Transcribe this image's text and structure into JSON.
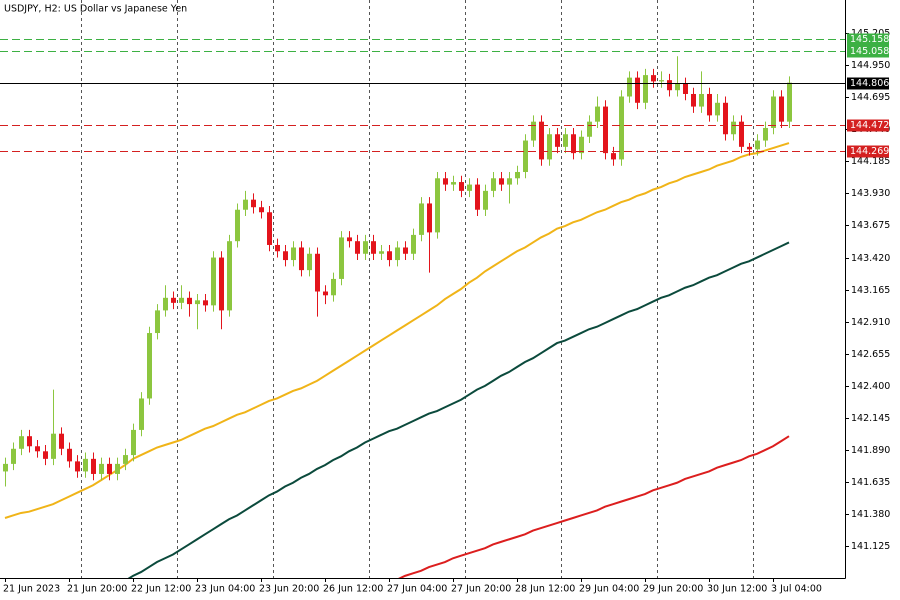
{
  "chart_data": {
    "type": "candlestick",
    "title": "USDJPY, H2:  US Dollar vs Japanese Yen",
    "categories": [
      "21 Jun 2023",
      null,
      null,
      null,
      null,
      null,
      null,
      null,
      "21 Jun 20:00",
      null,
      null,
      null,
      null,
      null,
      null,
      null,
      "22 Jun 12:00",
      null,
      null,
      null,
      null,
      null,
      null,
      null,
      "23 Jun 04:00",
      null,
      null,
      null,
      null,
      null,
      null,
      null,
      "23 Jun 20:00",
      null,
      null,
      null,
      null,
      null,
      null,
      null,
      "26 Jun 12:00",
      null,
      null,
      null,
      null,
      null,
      null,
      null,
      "27 Jun 04:00",
      null,
      null,
      null,
      null,
      null,
      null,
      null,
      "27 Jun 20:00",
      null,
      null,
      null,
      null,
      null,
      null,
      null,
      "28 Jun 12:00",
      null,
      null,
      null,
      null,
      null,
      null,
      null,
      "29 Jun 04:00",
      null,
      null,
      null,
      null,
      null,
      null,
      null,
      "29 Jun 20:00",
      null,
      null,
      null,
      null,
      null,
      null,
      null,
      "30 Jun 12:00",
      null,
      null,
      null,
      null,
      null,
      null,
      null,
      "3 Jul 04:00",
      null,
      null
    ],
    "open": [
      141.72,
      141.78,
      141.9,
      142.0,
      141.92,
      141.88,
      141.82,
      142.02,
      141.9,
      141.8,
      141.72,
      141.82,
      141.7,
      141.78,
      141.7,
      141.78,
      141.85,
      142.05,
      142.3,
      142.82,
      143.0,
      143.1,
      143.06,
      143.1,
      143.05,
      143.08,
      143.04,
      143.42,
      143.0,
      143.55,
      143.8,
      143.88,
      143.82,
      143.78,
      143.52,
      143.47,
      143.4,
      143.5,
      143.32,
      143.45,
      143.15,
      143.12,
      143.25,
      143.58,
      143.55,
      143.45,
      143.55,
      143.45,
      143.47,
      143.4,
      143.5,
      143.45,
      143.6,
      143.85,
      143.62,
      144.05,
      144.0,
      144.02,
      143.95,
      144.0,
      143.8,
      143.95,
      144.05,
      144.0,
      144.05,
      144.1,
      144.35,
      144.5,
      144.2,
      144.4,
      144.3,
      144.4,
      144.25,
      144.38,
      144.5,
      144.62,
      144.25,
      144.2,
      144.7,
      144.85,
      144.65,
      144.87,
      144.82,
      144.83,
      144.75,
      144.8,
      144.72,
      144.62,
      144.72,
      144.55,
      144.65,
      144.4,
      144.5,
      144.3,
      144.28,
      144.35,
      144.45,
      144.7,
      144.5
    ],
    "high": [
      141.83,
      141.95,
      142.05,
      142.05,
      141.97,
      141.93,
      142.37,
      142.07,
      141.95,
      141.85,
      141.87,
      141.87,
      141.83,
      141.83,
      141.83,
      141.9,
      142.1,
      142.35,
      142.87,
      143.05,
      143.2,
      143.15,
      143.2,
      143.15,
      143.13,
      143.13,
      143.47,
      143.47,
      143.6,
      143.85,
      143.95,
      143.93,
      143.87,
      143.83,
      143.57,
      143.52,
      143.55,
      143.55,
      143.5,
      143.5,
      143.2,
      143.3,
      143.63,
      143.63,
      143.6,
      143.6,
      143.6,
      143.52,
      143.52,
      143.55,
      143.55,
      143.65,
      143.9,
      143.9,
      144.1,
      144.1,
      144.07,
      144.07,
      144.05,
      144.05,
      144.0,
      144.1,
      144.1,
      144.1,
      144.15,
      144.4,
      144.55,
      144.55,
      144.45,
      144.45,
      144.45,
      144.45,
      144.43,
      144.55,
      144.7,
      144.67,
      144.3,
      144.75,
      144.9,
      144.9,
      144.92,
      144.92,
      144.9,
      144.88,
      145.02,
      144.85,
      144.77,
      144.9,
      144.77,
      144.72,
      144.7,
      144.55,
      144.55,
      144.33,
      144.4,
      144.5,
      144.75,
      144.75,
      144.86
    ],
    "low": [
      141.6,
      141.73,
      141.85,
      141.87,
      141.83,
      141.77,
      141.77,
      141.85,
      141.75,
      141.67,
      141.67,
      141.65,
      141.65,
      141.65,
      141.65,
      141.73,
      141.8,
      142.0,
      142.25,
      142.77,
      142.95,
      143.01,
      143.01,
      142.95,
      142.85,
      142.99,
      142.99,
      142.85,
      142.95,
      143.5,
      143.75,
      143.77,
      143.73,
      143.47,
      143.42,
      143.35,
      143.35,
      143.27,
      143.27,
      142.95,
      143.05,
      143.07,
      143.2,
      143.5,
      143.4,
      143.4,
      143.4,
      143.4,
      143.35,
      143.35,
      143.4,
      143.4,
      143.55,
      143.3,
      143.57,
      143.95,
      143.95,
      143.9,
      143.9,
      143.75,
      143.75,
      143.9,
      143.95,
      143.85,
      144.0,
      144.05,
      144.3,
      144.15,
      144.15,
      144.25,
      144.25,
      144.2,
      144.2,
      144.33,
      144.45,
      144.2,
      144.15,
      144.15,
      144.65,
      144.6,
      144.6,
      144.77,
      144.77,
      144.7,
      144.7,
      144.67,
      144.57,
      144.57,
      144.5,
      144.5,
      144.35,
      144.35,
      144.25,
      144.23,
      144.23,
      144.3,
      144.4,
      144.45,
      144.45
    ],
    "close": [
      141.78,
      141.9,
      142.0,
      141.92,
      141.88,
      141.82,
      142.02,
      141.9,
      141.8,
      141.72,
      141.82,
      141.7,
      141.78,
      141.7,
      141.78,
      141.85,
      142.05,
      142.3,
      142.82,
      143.0,
      143.1,
      143.06,
      143.1,
      143.05,
      143.08,
      143.04,
      143.42,
      143.0,
      143.55,
      143.8,
      143.88,
      143.82,
      143.78,
      143.52,
      143.47,
      143.4,
      143.5,
      143.32,
      143.45,
      143.15,
      143.12,
      143.25,
      143.58,
      143.55,
      143.45,
      143.55,
      143.45,
      143.47,
      143.4,
      143.5,
      143.45,
      143.6,
      143.85,
      143.62,
      144.05,
      144.0,
      144.02,
      143.95,
      144.0,
      143.8,
      143.95,
      144.05,
      144.0,
      144.05,
      144.1,
      144.35,
      144.5,
      144.2,
      144.4,
      144.3,
      144.4,
      144.25,
      144.38,
      144.5,
      144.62,
      144.25,
      144.2,
      144.7,
      144.85,
      144.65,
      144.87,
      144.82,
      144.83,
      144.75,
      144.8,
      144.72,
      144.62,
      144.72,
      144.55,
      144.65,
      144.4,
      144.5,
      144.3,
      144.28,
      144.35,
      144.45,
      144.7,
      144.5,
      144.81
    ],
    "up_color": "#8cc63f",
    "down_color": "#e3141c",
    "series": [
      {
        "color": "#f0b418",
        "values": [
          141.35,
          141.37,
          141.39,
          141.4,
          141.42,
          141.44,
          141.46,
          141.49,
          141.52,
          141.55,
          141.58,
          141.61,
          141.65,
          141.69,
          141.73,
          141.77,
          141.82,
          141.85,
          141.88,
          141.91,
          141.93,
          141.95,
          141.97,
          142.0,
          142.03,
          142.06,
          142.08,
          142.11,
          142.14,
          142.17,
          142.19,
          142.22,
          142.25,
          142.28,
          142.3,
          142.33,
          142.36,
          142.38,
          142.41,
          142.44,
          142.48,
          142.52,
          142.56,
          142.6,
          142.64,
          142.68,
          142.72,
          142.76,
          142.8,
          142.84,
          142.88,
          142.92,
          142.96,
          143.0,
          143.04,
          143.09,
          143.13,
          143.17,
          143.22,
          143.26,
          143.31,
          143.35,
          143.39,
          143.43,
          143.47,
          143.5,
          143.54,
          143.58,
          143.61,
          143.65,
          143.67,
          143.7,
          143.72,
          143.75,
          143.78,
          143.8,
          143.83,
          143.86,
          143.88,
          143.91,
          143.93,
          143.96,
          143.98,
          144.01,
          144.03,
          144.06,
          144.08,
          144.1,
          144.12,
          144.15,
          144.17,
          144.19,
          144.22,
          144.24,
          144.25,
          144.27,
          144.29,
          144.31,
          144.33
        ]
      },
      {
        "color": "#0b4a3c",
        "values": [
          null,
          null,
          null,
          null,
          null,
          null,
          null,
          null,
          null,
          null,
          null,
          null,
          null,
          null,
          null,
          140.85,
          140.89,
          140.92,
          140.96,
          141.0,
          141.03,
          141.06,
          141.1,
          141.14,
          141.18,
          141.22,
          141.26,
          141.3,
          141.34,
          141.37,
          141.41,
          141.45,
          141.49,
          141.53,
          141.56,
          141.6,
          141.63,
          141.67,
          141.7,
          141.74,
          141.77,
          141.81,
          141.84,
          141.88,
          141.91,
          141.95,
          141.98,
          142.01,
          142.04,
          142.06,
          142.09,
          142.12,
          142.15,
          142.18,
          142.2,
          142.23,
          142.26,
          142.29,
          142.33,
          142.37,
          142.4,
          142.44,
          142.48,
          142.51,
          142.55,
          142.59,
          142.62,
          142.66,
          142.7,
          142.74,
          142.76,
          142.79,
          142.82,
          142.85,
          142.87,
          142.9,
          142.93,
          142.96,
          142.99,
          143.01,
          143.04,
          143.07,
          143.1,
          143.12,
          143.15,
          143.18,
          143.2,
          143.23,
          143.26,
          143.28,
          143.31,
          143.34,
          143.37,
          143.39,
          143.42,
          143.45,
          143.48,
          143.51,
          143.54
        ]
      },
      {
        "color": "#dc1e1e",
        "values": [
          null,
          null,
          null,
          null,
          null,
          null,
          null,
          null,
          null,
          null,
          null,
          null,
          null,
          null,
          null,
          null,
          null,
          null,
          null,
          null,
          null,
          null,
          null,
          null,
          null,
          null,
          null,
          null,
          null,
          null,
          null,
          null,
          null,
          null,
          null,
          null,
          null,
          null,
          null,
          null,
          null,
          null,
          null,
          null,
          null,
          null,
          null,
          null,
          null,
          140.86,
          140.89,
          140.91,
          140.93,
          140.96,
          140.98,
          141.0,
          141.03,
          141.05,
          141.07,
          141.09,
          141.11,
          141.14,
          141.16,
          141.18,
          141.2,
          141.22,
          141.25,
          141.27,
          141.29,
          141.31,
          141.33,
          141.35,
          141.37,
          141.39,
          141.41,
          141.44,
          141.46,
          141.48,
          141.5,
          141.52,
          141.54,
          141.57,
          141.59,
          141.61,
          141.63,
          141.66,
          141.68,
          141.7,
          141.72,
          141.75,
          141.77,
          141.79,
          141.81,
          141.84,
          141.86,
          141.89,
          141.92,
          141.96,
          142.0
        ]
      }
    ],
    "levels": [
      {
        "value": 145.158,
        "color": "#3cb043",
        "style": "dashed"
      },
      {
        "value": 145.058,
        "color": "#3cb043",
        "style": "dashed"
      },
      {
        "value": 144.806,
        "color": "#000000",
        "style": "solid"
      },
      {
        "value": 144.472,
        "color": "#d42020",
        "style": "dashed"
      },
      {
        "value": 144.269,
        "color": "#d42020",
        "style": "dashed"
      }
    ],
    "ylim": [
      140.873,
      145.467
    ],
    "yticks": [
      {
        "value": 141.125,
        "label": "141.125"
      },
      {
        "value": 141.38,
        "label": "141.380"
      },
      {
        "value": 141.635,
        "label": "141.635"
      },
      {
        "value": 141.89,
        "label": "141.890"
      },
      {
        "value": 142.145,
        "label": "142.145"
      },
      {
        "value": 142.4,
        "label": "142.400"
      },
      {
        "value": 142.655,
        "label": "142.655"
      },
      {
        "value": 142.91,
        "label": "142.910"
      },
      {
        "value": 143.165,
        "label": "143.165"
      },
      {
        "value": 143.42,
        "label": "143.420"
      },
      {
        "value": 143.675,
        "label": "143.675"
      },
      {
        "value": 143.93,
        "label": "143.930"
      },
      {
        "value": 144.185,
        "label": "144.185"
      },
      {
        "value": 144.44,
        "label": "144.440"
      },
      {
        "value": 144.695,
        "label": "144.695"
      },
      {
        "value": 144.95,
        "label": "144.950"
      },
      {
        "value": 145.205,
        "label": "145.205"
      }
    ]
  }
}
